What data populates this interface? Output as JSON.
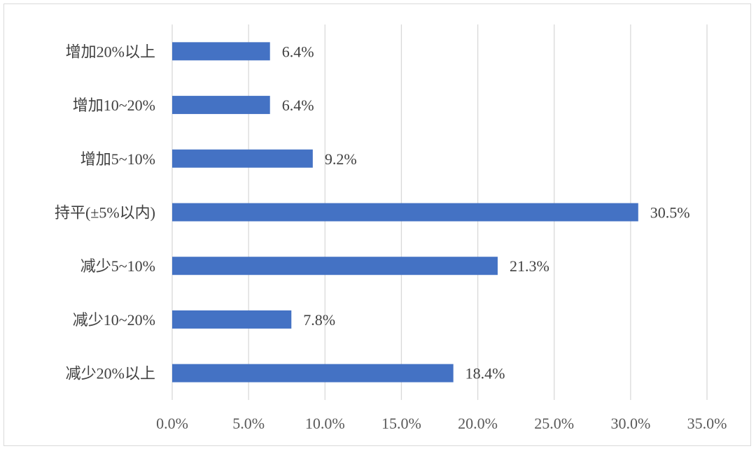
{
  "chart_data": {
    "type": "bar",
    "orientation": "horizontal",
    "categories": [
      "增加20%以上",
      "增加10~20%",
      "增加5~10%",
      "持平(±5%以内)",
      "减少5~10%",
      "减少10~20%",
      "减少20%以上"
    ],
    "values": [
      6.4,
      6.4,
      9.2,
      30.5,
      21.3,
      7.8,
      18.4
    ],
    "value_labels": [
      "6.4%",
      "6.4%",
      "9.2%",
      "30.5%",
      "21.3%",
      "7.8%",
      "18.4%"
    ],
    "x_ticks": [
      0,
      5,
      10,
      15,
      20,
      25,
      30,
      35
    ],
    "x_tick_labels": [
      "0.0%",
      "5.0%",
      "10.0%",
      "15.0%",
      "20.0%",
      "25.0%",
      "30.0%",
      "35.0%"
    ],
    "xlim": [
      0,
      35
    ],
    "grid": "vertical",
    "legend": "none",
    "bar_color": "#4472c4",
    "grid_color": "#d9d9d9",
    "title": "",
    "xlabel": "",
    "ylabel": ""
  }
}
